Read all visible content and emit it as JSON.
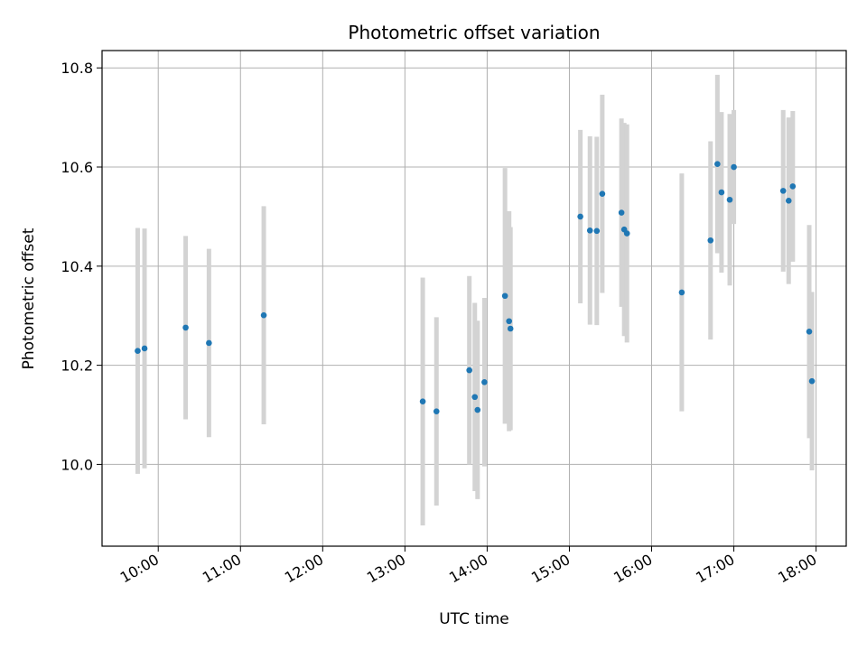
{
  "chart_data": {
    "type": "scatter",
    "title": "Photometric offset variation",
    "xlabel": "UTC time",
    "ylabel": "Photometric offset",
    "xlim": [
      "09:19",
      "18:22"
    ],
    "ylim": [
      9.835,
      10.835
    ],
    "grid": true,
    "x_ticks": [
      "10:00",
      "11:00",
      "12:00",
      "13:00",
      "14:00",
      "15:00",
      "16:00",
      "17:00",
      "18:00"
    ],
    "y_ticks": [
      "10.0",
      "10.2",
      "10.4",
      "10.6",
      "10.8"
    ],
    "colors": {
      "point": "#1f77b4",
      "errorbar": "#d3d3d3",
      "grid": "#b0b0b0"
    },
    "points": [
      {
        "x": "09:45",
        "y": 10.229,
        "err": 0.248
      },
      {
        "x": "09:50",
        "y": 10.234,
        "err": 0.242
      },
      {
        "x": "10:20",
        "y": 10.276,
        "err": 0.185
      },
      {
        "x": "10:37",
        "y": 10.245,
        "err": 0.19
      },
      {
        "x": "11:17",
        "y": 10.301,
        "err": 0.22
      },
      {
        "x": "13:13",
        "y": 10.127,
        "err": 0.25
      },
      {
        "x": "13:23",
        "y": 10.107,
        "err": 0.19
      },
      {
        "x": "13:47",
        "y": 10.19,
        "err": 0.19
      },
      {
        "x": "13:51",
        "y": 10.136,
        "err": 0.19
      },
      {
        "x": "13:53",
        "y": 10.11,
        "err": 0.18
      },
      {
        "x": "13:58",
        "y": 10.166,
        "err": 0.17
      },
      {
        "x": "14:13",
        "y": 10.34,
        "err": 0.258
      },
      {
        "x": "14:16",
        "y": 10.289,
        "err": 0.222
      },
      {
        "x": "14:17",
        "y": 10.274,
        "err": 0.205
      },
      {
        "x": "15:08",
        "y": 10.5,
        "err": 0.175
      },
      {
        "x": "15:15",
        "y": 10.472,
        "err": 0.19
      },
      {
        "x": "15:20",
        "y": 10.471,
        "err": 0.19
      },
      {
        "x": "15:24",
        "y": 10.546,
        "err": 0.2
      },
      {
        "x": "15:38",
        "y": 10.508,
        "err": 0.19
      },
      {
        "x": "15:40",
        "y": 10.474,
        "err": 0.215
      },
      {
        "x": "15:42",
        "y": 10.466,
        "err": 0.22
      },
      {
        "x": "16:22",
        "y": 10.347,
        "err": 0.24
      },
      {
        "x": "16:43",
        "y": 10.452,
        "err": 0.2
      },
      {
        "x": "16:48",
        "y": 10.606,
        "err": 0.18
      },
      {
        "x": "16:51",
        "y": 10.549,
        "err": 0.162
      },
      {
        "x": "16:57",
        "y": 10.534,
        "err": 0.173
      },
      {
        "x": "17:00",
        "y": 10.6,
        "err": 0.115
      },
      {
        "x": "17:36",
        "y": 10.552,
        "err": 0.163
      },
      {
        "x": "17:40",
        "y": 10.532,
        "err": 0.168
      },
      {
        "x": "17:43",
        "y": 10.561,
        "err": 0.152
      },
      {
        "x": "17:55",
        "y": 10.268,
        "err": 0.215
      },
      {
        "x": "17:57",
        "y": 10.168,
        "err": 0.18
      }
    ]
  }
}
